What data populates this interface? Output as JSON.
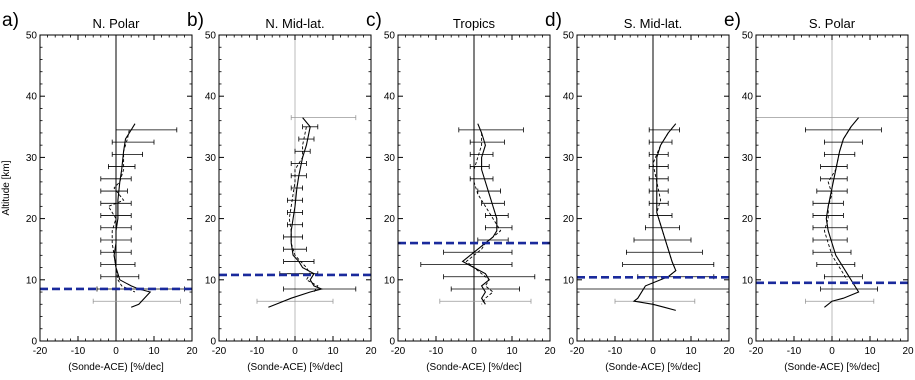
{
  "figure": {
    "ylabel": "Altitude [km]",
    "xlabel": "(Sonde-ACE) [%/dec]",
    "colors": {
      "axes": "#000000",
      "profile": "#000000",
      "zero_line": "#000000",
      "secondary_zero_line": "#bbbbbb",
      "error_bar": "#000000",
      "tropopause": "#1a2a9c"
    }
  },
  "chart_data": [
    {
      "type": "line",
      "letter": "a)",
      "title": "N. Polar",
      "xlabel": "(Sonde-ACE) [%/dec]",
      "ylabel": "Altitude [km]",
      "xlim": [
        -20,
        20
      ],
      "ylim": [
        0,
        50
      ],
      "xticks": [
        -20,
        -10,
        0,
        10,
        20
      ],
      "yticks": [
        0,
        10,
        20,
        30,
        40,
        50
      ],
      "zero_line_style": "dark",
      "tropopause_km": 8.5,
      "solid_profile": [
        [
          5,
          35.5
        ],
        [
          4,
          34.5
        ],
        [
          2.5,
          33
        ],
        [
          2,
          31
        ],
        [
          1.5,
          28
        ],
        [
          1,
          26
        ],
        [
          0.5,
          23
        ],
        [
          0.5,
          20
        ],
        [
          0,
          18
        ],
        [
          0,
          16
        ],
        [
          -0.5,
          14
        ],
        [
          0,
          12
        ],
        [
          1,
          10
        ],
        [
          4,
          9
        ],
        [
          6,
          8.5
        ],
        [
          9,
          8
        ],
        [
          6,
          6
        ],
        [
          4,
          5.5
        ]
      ],
      "dashed_profile": [
        [
          3.5,
          34.5
        ],
        [
          3,
          33
        ],
        [
          2,
          31
        ],
        [
          2,
          28
        ],
        [
          1,
          26
        ],
        [
          -0.5,
          25
        ],
        [
          2,
          23
        ],
        [
          -2,
          22
        ],
        [
          0,
          20
        ],
        [
          -1,
          18
        ],
        [
          -1,
          16
        ],
        [
          -0.5,
          14
        ],
        [
          0,
          12
        ],
        [
          0.5,
          10
        ],
        [
          1.5,
          9
        ],
        [
          5,
          8
        ]
      ],
      "error_bars": [
        {
          "y": 34.5,
          "x1": 0,
          "x2": 16
        },
        {
          "y": 32.5,
          "x1": -1,
          "x2": 10
        },
        {
          "y": 30.5,
          "x1": -1,
          "x2": 7
        },
        {
          "y": 28.5,
          "x1": -2,
          "x2": 5
        },
        {
          "y": 26.5,
          "x1": -4,
          "x2": 4
        },
        {
          "y": 24.5,
          "x1": -4,
          "x2": 3
        },
        {
          "y": 22.5,
          "x1": -4,
          "x2": 4
        },
        {
          "y": 20.5,
          "x1": -4,
          "x2": 4
        },
        {
          "y": 18.5,
          "x1": -4,
          "x2": 4
        },
        {
          "y": 16.5,
          "x1": -4,
          "x2": 4
        },
        {
          "y": 14.5,
          "x1": -4,
          "x2": 4
        },
        {
          "y": 12.5,
          "x1": -4,
          "x2": 5
        },
        {
          "y": 10.5,
          "x1": -4,
          "x2": 6
        },
        {
          "y": 8.5,
          "x1": -5,
          "x2": 18
        },
        {
          "y": 6.5,
          "x1": -6,
          "x2": 17,
          "faint": true
        }
      ]
    },
    {
      "type": "line",
      "letter": "b)",
      "title": "N. Mid-lat.",
      "xlabel": "(Sonde-ACE) [%/dec]",
      "ylabel": "",
      "xlim": [
        -20,
        20
      ],
      "ylim": [
        0,
        50
      ],
      "xticks": [
        -20,
        -10,
        0,
        10,
        20
      ],
      "yticks": [
        0,
        10,
        20,
        30,
        40,
        50
      ],
      "zero_line_style": "light",
      "tropopause_km": 10.8,
      "solid_profile": [
        [
          2,
          36.5
        ],
        [
          4,
          35
        ],
        [
          3,
          32
        ],
        [
          2,
          30
        ],
        [
          1,
          27
        ],
        [
          0.5,
          25
        ],
        [
          0,
          22
        ],
        [
          -0.5,
          20
        ],
        [
          -1,
          18
        ],
        [
          -1,
          16
        ],
        [
          -0.5,
          14
        ],
        [
          1,
          13
        ],
        [
          2,
          12
        ],
        [
          5,
          11
        ],
        [
          4,
          10
        ],
        [
          5,
          9
        ],
        [
          7,
          8.5
        ],
        [
          4,
          8
        ],
        [
          -1,
          7
        ],
        [
          -5,
          6
        ],
        [
          -7,
          5.5
        ]
      ],
      "dashed_profile": [
        [
          3,
          35
        ],
        [
          2,
          32
        ],
        [
          2,
          30
        ],
        [
          0,
          28
        ],
        [
          0,
          26
        ],
        [
          -0.5,
          24
        ],
        [
          -1,
          22
        ],
        [
          -1.5,
          20
        ],
        [
          -1,
          18
        ],
        [
          -1,
          16
        ],
        [
          0,
          14
        ],
        [
          3,
          12
        ],
        [
          4,
          11
        ],
        [
          3,
          10
        ],
        [
          6,
          9
        ],
        [
          5,
          8
        ]
      ],
      "error_bars": [
        {
          "y": 36.5,
          "x1": -1,
          "x2": 16,
          "faint": true
        },
        {
          "y": 35,
          "x1": 2,
          "x2": 6
        },
        {
          "y": 33,
          "x1": 1,
          "x2": 5
        },
        {
          "y": 31,
          "x1": 0,
          "x2": 4
        },
        {
          "y": 29,
          "x1": -1,
          "x2": 3
        },
        {
          "y": 27,
          "x1": -1,
          "x2": 3
        },
        {
          "y": 25,
          "x1": -1,
          "x2": 2
        },
        {
          "y": 23,
          "x1": -2,
          "x2": 2
        },
        {
          "y": 21,
          "x1": -2,
          "x2": 2
        },
        {
          "y": 19,
          "x1": -2,
          "x2": 2
        },
        {
          "y": 17,
          "x1": -3,
          "x2": 2
        },
        {
          "y": 15,
          "x1": -3,
          "x2": 3
        },
        {
          "y": 13,
          "x1": -3,
          "x2": 5
        },
        {
          "y": 11,
          "x1": -4,
          "x2": 6
        },
        {
          "y": 8.5,
          "x1": -3,
          "x2": 16
        },
        {
          "y": 6.5,
          "x1": -10,
          "x2": 10,
          "faint": true
        }
      ]
    },
    {
      "type": "line",
      "letter": "c)",
      "title": "Tropics",
      "xlabel": "(Sonde-ACE) [%/dec]",
      "ylabel": "",
      "xlim": [
        -20,
        20
      ],
      "ylim": [
        0,
        50
      ],
      "xticks": [
        -20,
        -10,
        0,
        10,
        20
      ],
      "yticks": [
        0,
        10,
        20,
        30,
        40,
        50
      ],
      "zero_line_style": "dark",
      "tropopause_km": 16,
      "solid_profile": [
        [
          1,
          35.5
        ],
        [
          2,
          34
        ],
        [
          3,
          32
        ],
        [
          2,
          30
        ],
        [
          2,
          28
        ],
        [
          3,
          26
        ],
        [
          4,
          24
        ],
        [
          5,
          22
        ],
        [
          6,
          20
        ],
        [
          6,
          18
        ],
        [
          5,
          17
        ],
        [
          3,
          16
        ],
        [
          1,
          15
        ],
        [
          -1,
          14
        ],
        [
          -3,
          13
        ],
        [
          0,
          12
        ],
        [
          3,
          11
        ],
        [
          4,
          10
        ],
        [
          2,
          9
        ],
        [
          3,
          8
        ],
        [
          2,
          7
        ],
        [
          3,
          6
        ]
      ],
      "dashed_profile": [
        [
          2,
          34
        ],
        [
          2,
          32
        ],
        [
          1,
          30
        ],
        [
          0,
          28
        ],
        [
          0,
          26
        ],
        [
          1,
          24
        ],
        [
          3,
          22
        ],
        [
          5,
          20
        ],
        [
          7,
          18
        ],
        [
          5,
          17
        ],
        [
          3,
          16
        ],
        [
          2,
          15
        ],
        [
          0,
          14
        ],
        [
          -2,
          13
        ],
        [
          0,
          12
        ],
        [
          2,
          11
        ],
        [
          4,
          10
        ],
        [
          3,
          9
        ],
        [
          5,
          8
        ],
        [
          3,
          7
        ],
        [
          2,
          6
        ]
      ],
      "error_bars": [
        {
          "y": 34.5,
          "x1": -4,
          "x2": 13
        },
        {
          "y": 32.5,
          "x1": -1,
          "x2": 8
        },
        {
          "y": 30.5,
          "x1": -1,
          "x2": 5
        },
        {
          "y": 28.5,
          "x1": -1,
          "x2": 4
        },
        {
          "y": 26.5,
          "x1": -1,
          "x2": 5
        },
        {
          "y": 24.5,
          "x1": 1,
          "x2": 7
        },
        {
          "y": 22.5,
          "x1": 2,
          "x2": 8
        },
        {
          "y": 20.5,
          "x1": 3,
          "x2": 9
        },
        {
          "y": 18.5,
          "x1": 3,
          "x2": 10
        },
        {
          "y": 16.5,
          "x1": 1,
          "x2": 9
        },
        {
          "y": 14.5,
          "x1": -8,
          "x2": 10
        },
        {
          "y": 12.5,
          "x1": -14,
          "x2": 10
        },
        {
          "y": 10.5,
          "x1": -8,
          "x2": 16
        },
        {
          "y": 8.5,
          "x1": -6,
          "x2": 12
        },
        {
          "y": 6.5,
          "x1": -9,
          "x2": 15,
          "faint": true
        }
      ]
    },
    {
      "type": "line",
      "letter": "d)",
      "title": "S. Mid-lat.",
      "xlabel": "(Sonde-ACE) [%/dec]",
      "ylabel": "",
      "xlim": [
        -20,
        20
      ],
      "ylim": [
        0,
        50
      ],
      "xticks": [
        -20,
        -10,
        0,
        10,
        20
      ],
      "yticks": [
        0,
        10,
        20,
        30,
        40,
        50
      ],
      "zero_line_style": "dark",
      "tropopause_km": 10.4,
      "solid_profile": [
        [
          6,
          35.5
        ],
        [
          4,
          34
        ],
        [
          2,
          32
        ],
        [
          1,
          30
        ],
        [
          1,
          27
        ],
        [
          1,
          24
        ],
        [
          1,
          21
        ],
        [
          2,
          19
        ],
        [
          3,
          17
        ],
        [
          4,
          15
        ],
        [
          5,
          13
        ],
        [
          6,
          11.5
        ],
        [
          4,
          10.5
        ],
        [
          2,
          10
        ],
        [
          -2,
          9
        ],
        [
          -4,
          7
        ],
        [
          -5,
          6.5
        ],
        [
          0,
          6
        ],
        [
          3,
          5.5
        ],
        [
          6,
          5
        ]
      ],
      "dashed_profile": [
        [
          4,
          34
        ],
        [
          2,
          32
        ],
        [
          0,
          29
        ],
        [
          1,
          26
        ],
        [
          2,
          23
        ],
        [
          1,
          21
        ],
        [
          2,
          19
        ],
        [
          3,
          17
        ],
        [
          4,
          15
        ],
        [
          5,
          13
        ],
        [
          6,
          11.5
        ],
        [
          4,
          10.5
        ]
      ],
      "error_bars": [
        {
          "y": 34.5,
          "x1": -1,
          "x2": 7
        },
        {
          "y": 32.5,
          "x1": -1,
          "x2": 5
        },
        {
          "y": 30.5,
          "x1": -1,
          "x2": 4
        },
        {
          "y": 28.5,
          "x1": -1,
          "x2": 4
        },
        {
          "y": 26.5,
          "x1": -1,
          "x2": 4
        },
        {
          "y": 24.5,
          "x1": -1,
          "x2": 4
        },
        {
          "y": 22.5,
          "x1": -1,
          "x2": 4
        },
        {
          "y": 20.5,
          "x1": -1,
          "x2": 5
        },
        {
          "y": 18.5,
          "x1": -2,
          "x2": 7
        },
        {
          "y": 16.5,
          "x1": -5,
          "x2": 10
        },
        {
          "y": 14.5,
          "x1": -7,
          "x2": 13
        },
        {
          "y": 12.5,
          "x1": -8,
          "x2": 16
        },
        {
          "y": 10.5,
          "x1": -4,
          "x2": 16
        },
        {
          "y": 8.5,
          "x1": -20,
          "x2": 20
        },
        {
          "y": 6.5,
          "x1": -10,
          "x2": 11,
          "faint": true
        }
      ]
    },
    {
      "type": "line",
      "letter": "e)",
      "title": "S. Polar",
      "xlabel": "(Sonde-ACE) [%/dec]",
      "ylabel": "",
      "xlim": [
        -20,
        20
      ],
      "ylim": [
        0,
        50
      ],
      "xticks": [
        -20,
        -10,
        0,
        10,
        20
      ],
      "yticks": [
        0,
        10,
        20,
        30,
        40,
        50
      ],
      "zero_line_style": "light",
      "tropopause_km": 9.5,
      "solid_profile": [
        [
          7,
          36.5
        ],
        [
          5,
          35
        ],
        [
          3,
          33
        ],
        [
          2,
          31
        ],
        [
          1,
          28
        ],
        [
          0,
          25
        ],
        [
          -1,
          22
        ],
        [
          -1.5,
          20
        ],
        [
          -1,
          18
        ],
        [
          0,
          16
        ],
        [
          1,
          14
        ],
        [
          3,
          12
        ],
        [
          5,
          10
        ],
        [
          7,
          8
        ],
        [
          3,
          7
        ],
        [
          0,
          6.5
        ],
        [
          -1,
          6
        ],
        [
          -2,
          5.5
        ]
      ],
      "dashed_profile": [
        [
          5,
          35
        ],
        [
          3,
          33
        ],
        [
          2,
          31
        ],
        [
          1,
          28
        ],
        [
          -1,
          26
        ],
        [
          0,
          24
        ],
        [
          -1,
          22
        ],
        [
          -1,
          20
        ],
        [
          -2,
          18
        ],
        [
          -1,
          16
        ],
        [
          0,
          14
        ],
        [
          2,
          12
        ],
        [
          4,
          10
        ]
      ],
      "error_bars": [
        {
          "y": 36.5,
          "x1": -20,
          "x2": 20,
          "faint": true
        },
        {
          "y": 34.5,
          "x1": -7,
          "x2": 13
        },
        {
          "y": 32.5,
          "x1": -2,
          "x2": 8
        },
        {
          "y": 30.5,
          "x1": -2,
          "x2": 6
        },
        {
          "y": 28.5,
          "x1": -3,
          "x2": 4
        },
        {
          "y": 26.5,
          "x1": -3,
          "x2": 4
        },
        {
          "y": 24.5,
          "x1": -4,
          "x2": 4
        },
        {
          "y": 22.5,
          "x1": -5,
          "x2": 3
        },
        {
          "y": 20.5,
          "x1": -5,
          "x2": 3
        },
        {
          "y": 18.5,
          "x1": -5,
          "x2": 4
        },
        {
          "y": 16.5,
          "x1": -5,
          "x2": 4
        },
        {
          "y": 14.5,
          "x1": -5,
          "x2": 5
        },
        {
          "y": 12.5,
          "x1": -4,
          "x2": 6
        },
        {
          "y": 10.5,
          "x1": -2,
          "x2": 8
        },
        {
          "y": 8.5,
          "x1": -3,
          "x2": 12
        },
        {
          "y": 6.5,
          "x1": -7,
          "x2": 11,
          "faint": true
        }
      ]
    }
  ]
}
